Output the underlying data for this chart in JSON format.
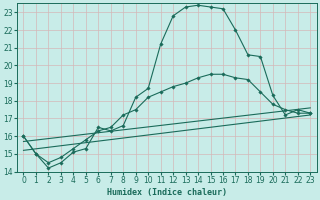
{
  "xlabel": "Humidex (Indice chaleur)",
  "xlim": [
    -0.5,
    23.5
  ],
  "ylim": [
    14,
    23.5
  ],
  "yticks": [
    14,
    15,
    16,
    17,
    18,
    19,
    20,
    21,
    22,
    23
  ],
  "xticks": [
    0,
    1,
    2,
    3,
    4,
    5,
    6,
    7,
    8,
    9,
    10,
    11,
    12,
    13,
    14,
    15,
    16,
    17,
    18,
    19,
    20,
    21,
    22,
    23
  ],
  "bg_color": "#c8ece8",
  "line_color": "#1a6b5a",
  "grid_color": "#b8dcd8",
  "line_main_x": [
    0,
    1,
    2,
    3,
    4,
    5,
    6,
    7,
    8,
    9,
    10,
    11,
    12,
    13,
    14,
    15,
    16,
    17,
    18,
    19,
    20,
    21,
    22,
    23
  ],
  "line_main_y": [
    16.0,
    15.0,
    14.2,
    14.5,
    15.1,
    15.3,
    16.5,
    16.3,
    16.6,
    18.2,
    18.7,
    21.2,
    22.8,
    23.3,
    23.4,
    23.3,
    23.2,
    22.0,
    20.6,
    20.5,
    18.3,
    17.2,
    17.5,
    17.3
  ],
  "line_smooth_x": [
    0,
    1,
    2,
    3,
    4,
    5,
    6,
    7,
    8,
    9,
    10,
    11,
    12,
    13,
    14,
    15,
    16,
    17,
    18,
    19,
    20,
    21,
    22,
    23
  ],
  "line_smooth_y": [
    16.0,
    15.0,
    14.5,
    14.8,
    15.3,
    15.8,
    16.3,
    16.5,
    17.2,
    17.5,
    18.2,
    18.5,
    18.8,
    19.0,
    19.3,
    19.5,
    19.5,
    19.3,
    19.2,
    18.5,
    17.8,
    17.5,
    17.3,
    17.3
  ],
  "trend1_x": [
    0,
    23
  ],
  "trend1_y": [
    15.2,
    17.2
  ],
  "trend2_x": [
    0,
    23
  ],
  "trend2_y": [
    15.7,
    17.6
  ]
}
